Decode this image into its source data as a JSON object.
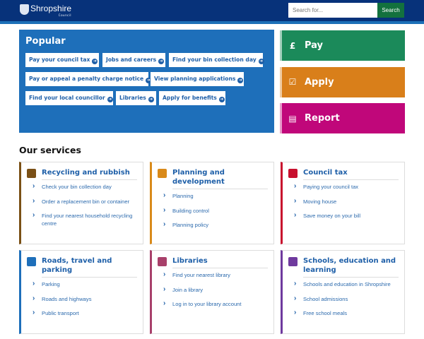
{
  "header": {
    "logo_text": "Shropshire",
    "logo_sub": "Council",
    "search_placeholder": "Search for...",
    "search_button": "Search"
  },
  "popular": {
    "title": "Popular",
    "links": [
      "Pay your council tax",
      "Jobs and careers",
      "Find your bin collection day",
      "Pay or appeal a penalty charge notice",
      "View planning applications",
      "Find your local councillor",
      "Libraries",
      "Apply for benefits"
    ]
  },
  "actions": [
    {
      "label": "Pay",
      "icon": "pound-hand-icon",
      "color": "#1b8a5a"
    },
    {
      "label": "Apply",
      "icon": "checkbox-icon",
      "color": "#d97f1a"
    },
    {
      "label": "Report",
      "icon": "speech-bubble-icon",
      "color": "#c0077a"
    }
  ],
  "services": {
    "title": "Our services",
    "cards": [
      {
        "title": "Recycling and rubbish",
        "color": "#7a5016",
        "icon": "bin-icon",
        "links": [
          "Check your bin collection day",
          "Order a replacement bin or container",
          "Find your nearest household recycling centre"
        ]
      },
      {
        "title": "Planning and development",
        "color": "#d98a1a",
        "icon": "plan-icon",
        "links": [
          "Planning",
          "Building control",
          "Planning policy"
        ]
      },
      {
        "title": "Council tax",
        "color": "#c8102e",
        "icon": "wallet-icon",
        "links": [
          "Paying your council tax",
          "Moving house",
          "Save money on your bill"
        ]
      },
      {
        "title": "Roads, travel and parking",
        "color": "#1e6fba",
        "icon": "car-icon",
        "links": [
          "Parking",
          "Roads and highways",
          "Public transport"
        ]
      },
      {
        "title": "Libraries",
        "color": "#a8406a",
        "icon": "book-icon",
        "links": [
          "Find your nearest library",
          "Join a library",
          "Log in to your library account"
        ]
      },
      {
        "title": "Schools, education and learning",
        "color": "#6f3a9e",
        "icon": "graduation-cap-icon",
        "links": [
          "Schools and education in Shropshire",
          "School admissions",
          "Free school meals"
        ]
      }
    ]
  }
}
